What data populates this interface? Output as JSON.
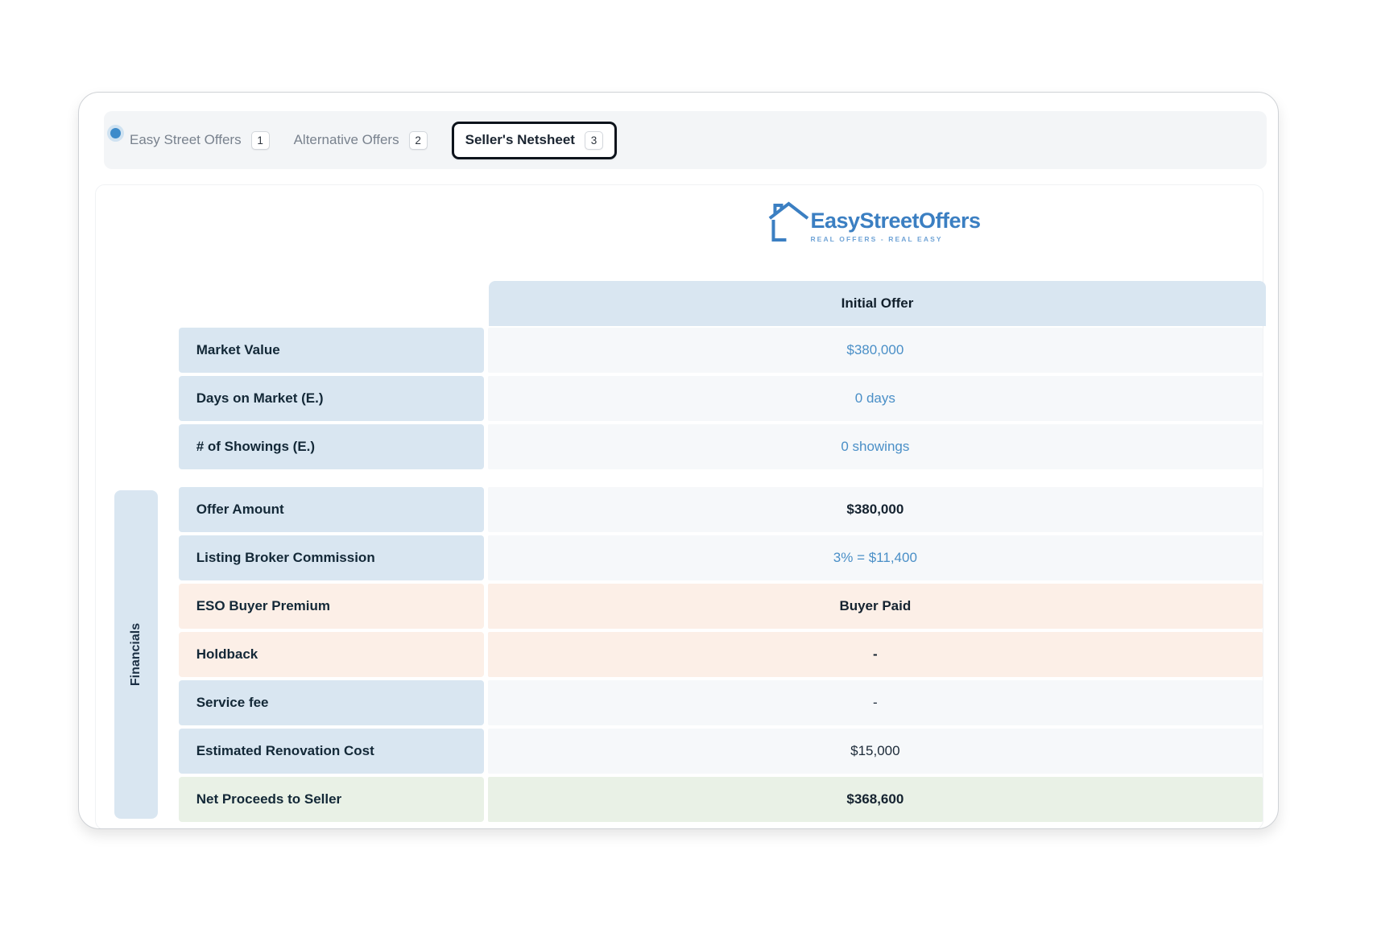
{
  "tabs": [
    {
      "label": "Easy Street Offers",
      "count": "1",
      "active": false
    },
    {
      "label": "Alternative Offers",
      "count": "2",
      "active": false
    },
    {
      "label": "Seller's Netsheet",
      "count": "3",
      "active": true
    }
  ],
  "logo": {
    "name": "EasyStreetOffers",
    "tagline": "REAL OFFERS - REAL EASY"
  },
  "table": {
    "column_header": "Initial Offer",
    "group_label": "Financials",
    "rows": [
      {
        "label": "Market Value",
        "value": "$380,000",
        "tone": "blue",
        "value_style": "link",
        "gap_after": false
      },
      {
        "label": "Days on Market (E.)",
        "value": "0 days",
        "tone": "blue",
        "value_style": "link",
        "gap_after": false
      },
      {
        "label": "# of Showings (E.)",
        "value": "0 showings",
        "tone": "blue",
        "value_style": "link",
        "gap_after": true
      },
      {
        "label": "Offer Amount",
        "value": "$380,000",
        "tone": "blue",
        "value_style": "bold",
        "gap_after": false
      },
      {
        "label": "Listing Broker Commission",
        "value": "3% = $11,400",
        "tone": "blue",
        "value_style": "link",
        "gap_after": false
      },
      {
        "label": "ESO Buyer Premium",
        "value": "Buyer Paid",
        "tone": "peach",
        "value_style": "bold",
        "gap_after": false
      },
      {
        "label": "Holdback",
        "value": "-",
        "tone": "peach",
        "value_style": "bold",
        "gap_after": false
      },
      {
        "label": "Service fee",
        "value": "-",
        "tone": "blue",
        "value_style": "plain",
        "gap_after": false
      },
      {
        "label": "Estimated Renovation Cost",
        "value": "$15,000",
        "tone": "blue",
        "value_style": "plain",
        "gap_after": false
      },
      {
        "label": "Net Proceeds to Seller",
        "value": "$368,600",
        "tone": "green",
        "value_style": "bold",
        "gap_after": false
      }
    ]
  },
  "colors": {
    "accent_blue": "#3b7fc2",
    "value_link_blue": "#4a8fc7",
    "navy_text": "#132837",
    "label_cell_bg": "#d9e6f1",
    "value_cell_bg": "#f6f8fa",
    "peach_row_bg": "#fcefe7",
    "green_row_bg": "#e9f1e6",
    "tabbar_bg": "#f3f5f7",
    "status_dot": "#3d8bca"
  }
}
